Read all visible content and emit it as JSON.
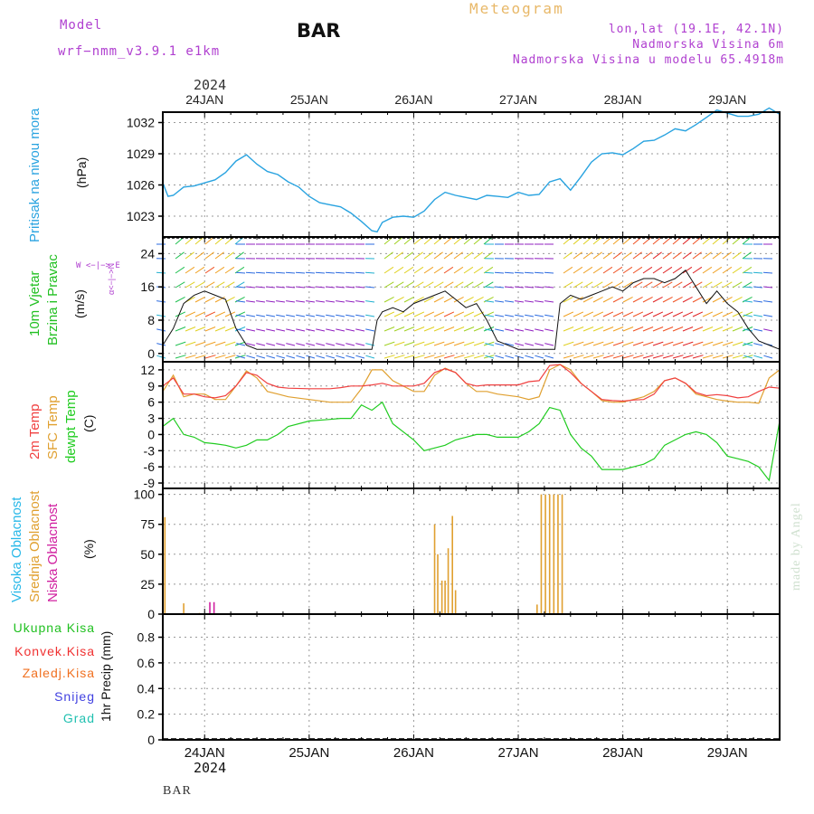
{
  "header": {
    "model_label": "Model",
    "model_name": "wrf−nmm_v3.9.1  e1km",
    "title": "BAR",
    "meteogram_label": "Meteogram",
    "lonlat": "lon,lat (19.1E, 42.1N)",
    "altitude": "Nadmorska Visina 6m",
    "model_altitude": "Nadmorska Visina u modelu 65.4918m"
  },
  "footer": {
    "station": "BAR",
    "credit": "made by Angel"
  },
  "time_axis": {
    "year": "2024",
    "day_labels": [
      "24JAN",
      "25JAN",
      "26JAN",
      "27JAN",
      "28JAN",
      "29JAN"
    ]
  },
  "colors": {
    "pressure": "#29a3e0",
    "temp2m": "#f04040",
    "sfc": "#e0a030",
    "dewpt": "#20cc20",
    "high_cloud": "#28b8e8",
    "mid_cloud": "#e0a030",
    "low_cloud": "#d020a0",
    "total_precip": "#20c020",
    "conv": "#f03030",
    "frozen": "#f07020",
    "snow": "#4040e0",
    "graupel": "#20c0b0"
  },
  "panels": {
    "pressure": {
      "label": "Pritisak na nivou mora",
      "unit": "(hPa)"
    },
    "wind": {
      "label1": "10m Vjetar",
      "label2": "Brzina i Pravac",
      "unit": "(m/s)",
      "compass_ns": "α<−|−>N",
      "compass_we": "W <−|−> E"
    },
    "temp": {
      "label1": "2m Temp",
      "label2": "SFC Temp",
      "label3": "dewpt Temp",
      "unit": "(C)"
    },
    "cloud": {
      "label1": "Visoka Oblacnost",
      "label2": "Srednja Oblacnost",
      "label3": "Niska Oblacnost",
      "unit": "(%)"
    },
    "precip": {
      "legend": [
        "Ukupna Kisa",
        "Konvek.Kisa",
        "Zaledj.Kisa",
        "Snijeg",
        "Grad"
      ],
      "unit": "1hr Precip (mm)"
    }
  },
  "chart_data": [
    {
      "type": "line",
      "name": "pressure",
      "x_range_days": [
        23.6,
        29.5
      ],
      "ylim": [
        1021,
        1033
      ],
      "yticks": [
        1023,
        1026,
        1029,
        1032
      ],
      "x": [
        23.6,
        23.65,
        23.7,
        23.8,
        23.9,
        24.0,
        24.1,
        24.2,
        24.3,
        24.4,
        24.5,
        24.6,
        24.7,
        24.8,
        24.9,
        25.0,
        25.1,
        25.2,
        25.3,
        25.4,
        25.5,
        25.6,
        25.65,
        25.7,
        25.8,
        25.9,
        26.0,
        26.1,
        26.2,
        26.3,
        26.4,
        26.5,
        26.6,
        26.7,
        26.8,
        26.9,
        27.0,
        27.1,
        27.2,
        27.3,
        27.4,
        27.5,
        27.6,
        27.7,
        27.8,
        27.9,
        28.0,
        28.1,
        28.2,
        28.3,
        28.4,
        28.5,
        28.6,
        28.7,
        28.8,
        28.9,
        29.0,
        29.1,
        29.2,
        29.3,
        29.4,
        29.5
      ],
      "values": [
        1026.2,
        1024.9,
        1025.0,
        1025.8,
        1025.9,
        1026.2,
        1026.5,
        1027.2,
        1028.3,
        1028.9,
        1028.0,
        1027.3,
        1027.0,
        1026.3,
        1025.8,
        1024.9,
        1024.3,
        1024.1,
        1023.9,
        1023.3,
        1022.5,
        1021.6,
        1021.5,
        1022.4,
        1022.9,
        1023.0,
        1022.9,
        1023.5,
        1024.6,
        1025.3,
        1025.0,
        1024.8,
        1024.6,
        1025.0,
        1024.9,
        1024.8,
        1025.3,
        1025.0,
        1025.1,
        1026.3,
        1026.6,
        1025.5,
        1026.8,
        1028.2,
        1029.0,
        1029.1,
        1028.9,
        1029.5,
        1030.2,
        1030.3,
        1030.8,
        1031.4,
        1031.2,
        1031.8,
        1032.5,
        1033.2,
        1032.9,
        1032.6,
        1032.6,
        1032.8,
        1033.4,
        1032.8
      ]
    },
    {
      "type": "line",
      "name": "wind_speed",
      "ylim": [
        -2,
        28
      ],
      "yticks": [
        0,
        8,
        16,
        24
      ],
      "x": [
        23.6,
        23.7,
        23.8,
        23.9,
        24.0,
        24.1,
        24.2,
        24.3,
        24.4,
        24.5,
        24.6,
        24.8,
        25.0,
        25.2,
        25.4,
        25.6,
        25.65,
        25.7,
        25.8,
        25.9,
        26.0,
        26.1,
        26.2,
        26.3,
        26.4,
        26.5,
        26.6,
        26.7,
        26.8,
        27.0,
        27.2,
        27.35,
        27.4,
        27.5,
        27.6,
        27.7,
        27.8,
        27.9,
        28.0,
        28.1,
        28.2,
        28.3,
        28.4,
        28.5,
        28.6,
        28.7,
        28.8,
        28.9,
        29.0,
        29.1,
        29.2,
        29.3,
        29.4,
        29.5
      ],
      "values": [
        2,
        6,
        12,
        14,
        15,
        14,
        13,
        6,
        2,
        1,
        1,
        1,
        1,
        1,
        1,
        1,
        8,
        10,
        11,
        10,
        12,
        13,
        14,
        15,
        13,
        11,
        12,
        8,
        3,
        1,
        1,
        1,
        12,
        14,
        13,
        14,
        15,
        16,
        15,
        17,
        18,
        18,
        17,
        18,
        20,
        16,
        12,
        15,
        12,
        10,
        6,
        3,
        2,
        1
      ]
    },
    {
      "type": "line",
      "name": "temperature",
      "ylim": [
        -10,
        13.5
      ],
      "yticks": [
        -9,
        -6,
        -3,
        0,
        3,
        6,
        9,
        12
      ],
      "x": [
        23.6,
        23.7,
        23.8,
        23.9,
        24.0,
        24.1,
        24.2,
        24.3,
        24.4,
        24.5,
        24.6,
        24.7,
        24.8,
        25.0,
        25.2,
        25.3,
        25.4,
        25.5,
        25.6,
        25.7,
        25.8,
        26.0,
        26.1,
        26.2,
        26.3,
        26.4,
        26.5,
        26.6,
        26.7,
        26.8,
        27.0,
        27.1,
        27.2,
        27.3,
        27.4,
        27.5,
        27.6,
        27.7,
        27.8,
        27.9,
        28.0,
        28.1,
        28.2,
        28.3,
        28.4,
        28.5,
        28.6,
        28.7,
        28.8,
        28.9,
        29.0,
        29.1,
        29.2,
        29.3,
        29.4,
        29.5
      ],
      "series": [
        {
          "name": "2m Temp",
          "values": [
            9,
            10.5,
            7.5,
            7.5,
            7,
            6.8,
            7.2,
            9,
            11.5,
            11,
            9.5,
            8.8,
            8.6,
            8.5,
            8.5,
            8.7,
            9,
            9,
            9.2,
            9.5,
            9,
            9,
            9.5,
            11.5,
            12.2,
            11.5,
            9.5,
            9,
            9.2,
            9.2,
            9.2,
            9.8,
            10,
            12.8,
            13,
            11.5,
            9.5,
            8,
            6.5,
            6.3,
            6.2,
            6.4,
            6.5,
            7.5,
            10,
            10.5,
            9.5,
            7.8,
            7.2,
            7.4,
            7.2,
            6.8,
            7,
            8,
            8.8,
            8.6
          ]
        },
        {
          "name": "SFC Temp",
          "values": [
            8,
            11,
            7,
            7.5,
            7.5,
            6.5,
            6.5,
            9,
            11.8,
            10.5,
            8,
            7.5,
            7,
            6.5,
            6,
            6,
            6,
            8.5,
            12,
            12,
            10,
            8,
            8,
            11,
            12.3,
            11.5,
            9.5,
            8,
            8,
            7.5,
            7,
            6.5,
            7,
            12,
            13,
            12,
            9.5,
            8,
            6.3,
            6,
            6,
            6.5,
            7,
            8,
            10,
            10.5,
            9.5,
            7.5,
            7,
            6.5,
            6.2,
            6,
            6,
            5.8,
            10.5,
            12
          ]
        },
        {
          "name": "dewpt Temp",
          "values": [
            1.5,
            3,
            0,
            -0.5,
            -1.5,
            -1.7,
            -2,
            -2.5,
            -2,
            -1,
            -1,
            0,
            1.5,
            2.5,
            2.8,
            3,
            3,
            5.5,
            4.5,
            6,
            2,
            -1,
            -3,
            -2.5,
            -2,
            -1,
            -0.5,
            0,
            0,
            -0.5,
            -0.5,
            0.5,
            2,
            5,
            4.5,
            0,
            -2.5,
            -4,
            -6.5,
            -6.5,
            -6.5,
            -6,
            -5.5,
            -4.5,
            -2,
            -1,
            0,
            0.5,
            0,
            -1.5,
            -4,
            -4.5,
            -5,
            -6,
            -8.5,
            2.5
          ]
        }
      ]
    },
    {
      "type": "bar",
      "name": "cloud_cover",
      "ylim": [
        0,
        105
      ],
      "yticks": [
        0,
        25,
        50,
        75,
        100
      ],
      "series": [
        {
          "name": "Srednja Oblacnost",
          "x": [
            23.62,
            23.8,
            23.95,
            26.2,
            26.23,
            26.27,
            26.3,
            26.33,
            26.37,
            26.4,
            26.43,
            27.18,
            27.22,
            27.26,
            27.3,
            27.34,
            27.38,
            27.42
          ],
          "values": [
            81,
            9,
            1,
            75,
            50,
            28,
            28,
            55,
            82,
            20,
            0,
            8,
            100,
            100,
            100,
            100,
            100,
            100
          ]
        },
        {
          "name": "Niska Oblacnost",
          "x": [
            24.05,
            24.09
          ],
          "values": [
            10,
            10
          ]
        },
        {
          "name": "Visoka Oblacnost",
          "x": [],
          "values": []
        }
      ]
    },
    {
      "type": "line",
      "name": "precipitation",
      "ylim": [
        0,
        0.98
      ],
      "yticks": [
        0,
        0.2,
        0.4,
        0.6,
        0.8
      ],
      "values": []
    }
  ]
}
